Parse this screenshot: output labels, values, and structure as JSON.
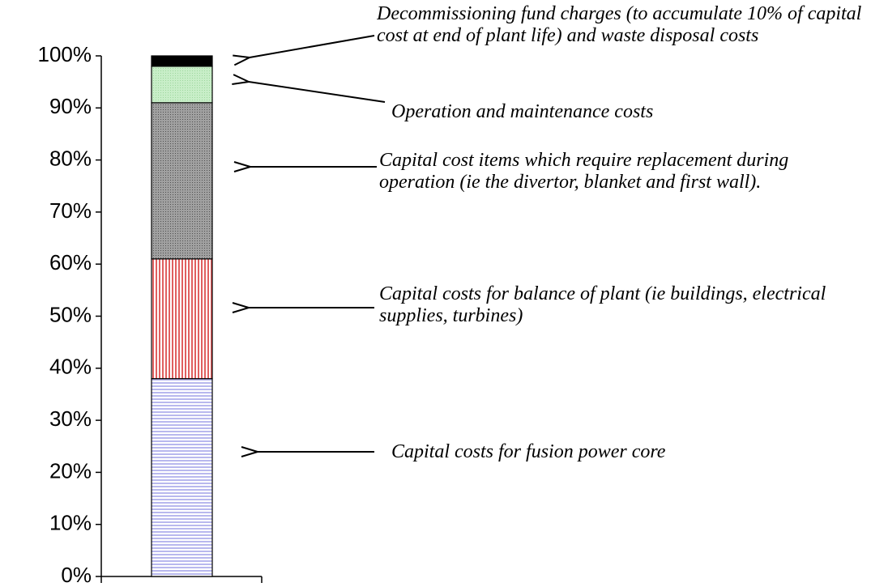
{
  "chart_data": {
    "type": "bar",
    "stacked": true,
    "categories": [
      null
    ],
    "series": [
      {
        "name": "Capital costs for fusion power core",
        "color": "#c8c8f2",
        "values": [
          38
        ]
      },
      {
        "name": "Capital costs for balance of plant (ie buildings, electrical supplies, turbines)",
        "color": "#ee9a9a",
        "values": [
          23
        ]
      },
      {
        "name": "Capital cost items which require replacement during operation (ie the divertor, blanket and first wall).",
        "color": "#9a9a9a",
        "values": [
          30
        ]
      },
      {
        "name": "Operation and maintenance costs",
        "color": "#c2eac2",
        "values": [
          7
        ]
      },
      {
        "name": "Decommissioning fund charges (to accumulate 10% of capital cost at end of plant life) and waste disposal costs",
        "color": "#000000",
        "values": [
          2
        ]
      }
    ],
    "ylim": [
      0,
      100
    ],
    "yticks": [
      {
        "value": 0,
        "label": "0%"
      },
      {
        "value": 10,
        "label": "10%"
      },
      {
        "value": 20,
        "label": "20%"
      },
      {
        "value": 30,
        "label": "30%"
      },
      {
        "value": 40,
        "label": "40%"
      },
      {
        "value": 50,
        "label": "50%"
      },
      {
        "value": 60,
        "label": "60%"
      },
      {
        "value": 70,
        "label": "70%"
      },
      {
        "value": 80,
        "label": "80%"
      },
      {
        "value": 90,
        "label": "90%"
      },
      {
        "value": 100,
        "label": "100%"
      }
    ]
  }
}
